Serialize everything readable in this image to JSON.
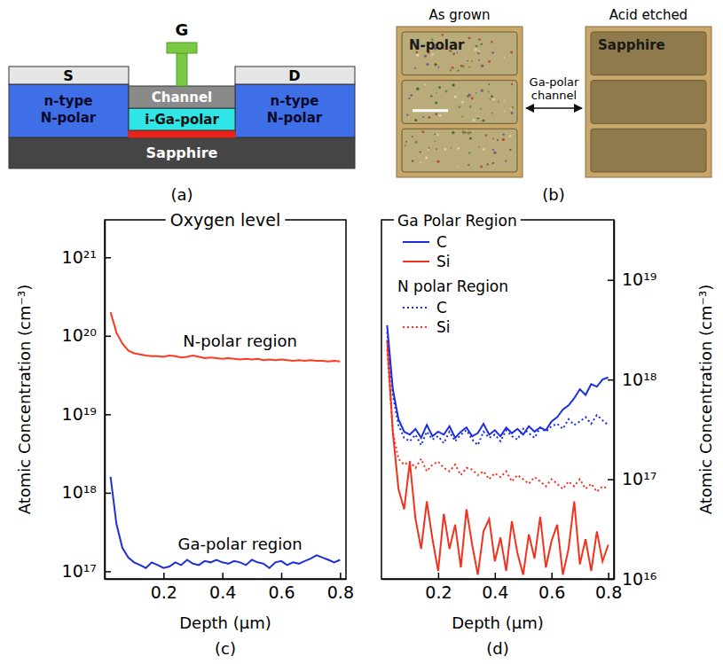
{
  "figure": {
    "captions": [
      "(a)",
      "(b)",
      "(c)",
      "(d)"
    ]
  },
  "diagram": {
    "source": "S",
    "drain": "D",
    "gate": "G",
    "channel": "Channel",
    "buffer": "i-Ga-polar",
    "left_region": "n-type N-polar",
    "right_region": "n-type N-polar",
    "substrate": "Sapphire"
  },
  "micrographs": {
    "panels": [
      {
        "title": "As grown",
        "label": "N-polar"
      },
      {
        "title": "Acid etched",
        "label": "Sapphire"
      }
    ],
    "channel_label": "Ga-polar channel"
  },
  "chart_data": [
    {
      "type": "line",
      "title": "Oxygen level",
      "x_label": "Depth (μm)",
      "y_label": "Atomic Concentration (cm⁻³)",
      "log": "y",
      "x": [
        0.02,
        0.04,
        0.06,
        0.08,
        0.1,
        0.12,
        0.14,
        0.16,
        0.18,
        0.2,
        0.22,
        0.24,
        0.26,
        0.28,
        0.3,
        0.32,
        0.34,
        0.36,
        0.38,
        0.4,
        0.42,
        0.44,
        0.46,
        0.48,
        0.5,
        0.52,
        0.54,
        0.56,
        0.58,
        0.6,
        0.62,
        0.64,
        0.66,
        0.68,
        0.7,
        0.72,
        0.74,
        0.76,
        0.78,
        0.8
      ],
      "xlim": [
        0,
        0.82
      ],
      "xticks": [
        0.2,
        0.4,
        0.6,
        0.8
      ],
      "ylim": [
        8e+16,
        3e+21
      ],
      "yticks": [
        {
          "value": 1e+17,
          "label": "10¹⁷"
        },
        {
          "value": 1e+18,
          "label": "10¹⁸"
        },
        {
          "value": 1e+19,
          "label": "10¹⁹"
        },
        {
          "value": 1e+20,
          "label": "10²⁰"
        },
        {
          "value": 1e+21,
          "label": "10²¹"
        }
      ],
      "series": [
        {
          "name": "N-polar region",
          "color": "#ff3b1f",
          "line_style": "solid",
          "values": [
            2e+20,
            1.1e+20,
            8e+19,
            6.5e+19,
            6e+19,
            5.8e+19,
            5.6e+19,
            5.5e+19,
            5.5e+19,
            5.4e+19,
            5.6e+19,
            5.5e+19,
            5.3e+19,
            5.4e+19,
            5.6e+19,
            5.4e+19,
            5.2e+19,
            5.3e+19,
            5.2e+19,
            5.1e+19,
            5.2e+19,
            5.1e+19,
            5e+19,
            5.1e+19,
            5e+19,
            5.1e+19,
            4.9e+19,
            5e+19,
            4.9e+19,
            5e+19,
            4.9e+19,
            4.8e+19,
            4.9e+19,
            4.8e+19,
            4.9e+19,
            4.8e+19,
            4.8e+19,
            4.7e+19,
            4.8e+19,
            4.7e+19
          ]
        },
        {
          "name": "Ga-polar region",
          "color": "#1f2fd6",
          "line_style": "solid",
          "values": [
            1.6e+18,
            4e+17,
            2e+17,
            1.5e+17,
            1.3e+17,
            1.2e+17,
            1.1e+17,
            1.3e+17,
            1.2e+17,
            1.1e+17,
            1.15e+17,
            1.3e+17,
            1.2e+17,
            1.4e+17,
            1.25e+17,
            1.2e+17,
            1.35e+17,
            1.3e+17,
            1.4e+17,
            1.3e+17,
            1.25e+17,
            1.35e+17,
            1.3e+17,
            1.2e+17,
            1.4e+17,
            1.3e+17,
            1.25e+17,
            1.1e+17,
            1.3e+17,
            1.35e+17,
            1.2e+17,
            1.3e+17,
            1.25e+17,
            1.35e+17,
            1.45e+17,
            1.6e+17,
            1.5e+17,
            1.4e+17,
            1.3e+17,
            1.4e+17
          ]
        }
      ]
    },
    {
      "type": "line",
      "x_label": "Depth (μm)",
      "y_label": "Atomic Concentration (cm⁻³)",
      "log": "y",
      "legend": "top",
      "x": [
        0.02,
        0.04,
        0.06,
        0.08,
        0.1,
        0.12,
        0.14,
        0.16,
        0.18,
        0.2,
        0.22,
        0.24,
        0.26,
        0.28,
        0.3,
        0.32,
        0.34,
        0.36,
        0.38,
        0.4,
        0.42,
        0.44,
        0.46,
        0.48,
        0.5,
        0.52,
        0.54,
        0.56,
        0.58,
        0.6,
        0.62,
        0.64,
        0.66,
        0.68,
        0.7,
        0.72,
        0.74,
        0.76,
        0.78,
        0.8
      ],
      "xlim": [
        0,
        0.82
      ],
      "xticks": [
        0.2,
        0.4,
        0.6,
        0.8
      ],
      "ylim": [
        1e+16,
        4e+19
      ],
      "yticks": [
        {
          "value": 1e+16,
          "label": "10¹⁶"
        },
        {
          "value": 1e+17,
          "label": "10¹⁷"
        },
        {
          "value": 1e+18,
          "label": "10¹⁸"
        },
        {
          "value": 1e+19,
          "label": "10¹⁹"
        }
      ],
      "series": [
        {
          "name": "C",
          "group": "Ga Polar Region",
          "color": "#1a2ee0",
          "line_style": "solid",
          "values": [
            3.5e+18,
            8e+17,
            4e+17,
            3e+17,
            2.8e+17,
            3.2e+17,
            2.6e+17,
            3.5e+17,
            2.7e+17,
            3e+17,
            2.8e+17,
            3.4e+17,
            2.6e+17,
            3e+17,
            3.3e+17,
            2.7e+17,
            2.9e+17,
            3.6e+17,
            2.8e+17,
            3.1e+17,
            2.7e+17,
            3.3e+17,
            2.9e+17,
            3.2e+17,
            2.8e+17,
            3.4e+17,
            3e+17,
            3.3e+17,
            3.1e+17,
            3.8e+17,
            4.2e+17,
            5e+17,
            5.5e+17,
            6.5e+17,
            8e+17,
            7e+17,
            9e+17,
            8.5e+17,
            1e+18,
            1.05e+18
          ]
        },
        {
          "name": "Si",
          "group": "Ga Polar Region",
          "color": "#f0321e",
          "line_style": "solid",
          "values": [
            2.5e+18,
            3e+17,
            8e+16,
            5e+16,
            1.5e+17,
            4e+16,
            2e+16,
            6e+16,
            2.5e+16,
            1.2e+16,
            4.5e+16,
            2e+16,
            3.5e+16,
            1.3e+16,
            5e+16,
            2.2e+16,
            1.1e+16,
            3e+16,
            4e+16,
            1.5e+16,
            2.6e+16,
            1.2e+16,
            3.8e+16,
            1.8e+16,
            1.1e+16,
            2.8e+16,
            1.6e+16,
            4.2e+16,
            1.3e+16,
            2.4e+16,
            3.5e+16,
            1.1e+16,
            2e+16,
            6e+16,
            1.4e+16,
            2.5e+16,
            1.2e+16,
            3e+16,
            1.5e+16,
            2.2e+16
          ]
        },
        {
          "name": "C",
          "group": "N polar Region",
          "color": "#1a2ee0",
          "line_style": "dotted",
          "values": [
            3e+18,
            7e+17,
            3.5e+17,
            2.6e+17,
            2.4e+17,
            2.8e+17,
            2.2e+17,
            3e+17,
            2.5e+17,
            2.7e+17,
            2.3e+17,
            3e+17,
            2.4e+17,
            2.8e+17,
            3.1e+17,
            2.5e+17,
            2.2e+17,
            3e+17,
            2.6e+17,
            2.8e+17,
            2.4e+17,
            3.1e+17,
            2.7e+17,
            2.5e+17,
            3.2e+17,
            2.9e+17,
            2.6e+17,
            3.3e+17,
            3e+17,
            3.4e+17,
            3.6e+17,
            3.2e+17,
            4e+17,
            3.5e+17,
            3.8e+17,
            4.2e+17,
            3.6e+17,
            4.4e+17,
            3.9e+17,
            3.5e+17
          ]
        },
        {
          "name": "Si",
          "group": "N polar Region",
          "color": "#f0321e",
          "line_style": "dotted",
          "values": [
            2e+18,
            3e+17,
            1.6e+17,
            1.4e+17,
            1.5e+17,
            1.3e+17,
            1.6e+17,
            1.2e+17,
            1.4e+17,
            1.5e+17,
            1.3e+17,
            1.2e+17,
            1.4e+17,
            1.1e+17,
            1.3e+17,
            1.25e+17,
            1.1e+17,
            1.2e+17,
            1e+17,
            1.15e+17,
            1.05e+17,
            1.2e+17,
            9.5e+16,
            1.1e+17,
            1e+17,
            9e+16,
            1.05e+17,
            9.5e+16,
            8.5e+16,
            1e+17,
            9e+16,
            8e+16,
            9.5e+16,
            8.5e+16,
            1e+17,
            8e+16,
            9e+16,
            7.5e+16,
            8.5e+16,
            8e+16
          ]
        }
      ]
    }
  ]
}
